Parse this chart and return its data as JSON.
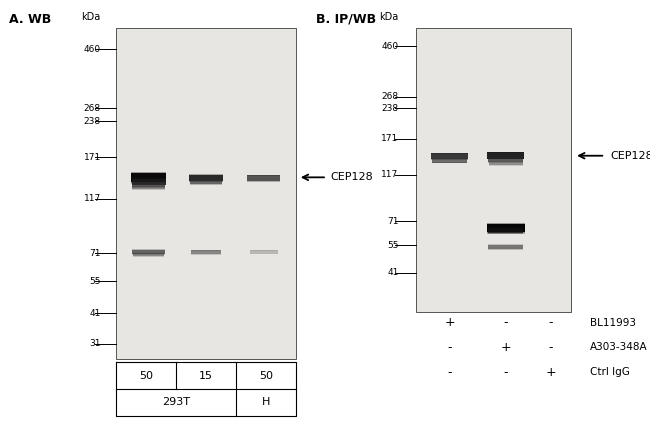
{
  "title_A": "A. WB",
  "title_B": "B. IP/WB",
  "mw_markers_A": [
    460,
    268,
    238,
    171,
    117,
    71,
    55,
    41,
    31
  ],
  "mw_markers_B": [
    460,
    268,
    238,
    171,
    117,
    71,
    55,
    41
  ],
  "label_CEP128": "CEP128",
  "label_kDa": "kDa",
  "label_IP": "IP",
  "gel_bg": "#e8e6e2",
  "fig_bg": "white",
  "table_A_row1": [
    "50",
    "15",
    "50"
  ],
  "table_A_row2_left": "293T",
  "table_A_row2_right": "H",
  "ip_row_labels": [
    "BL11993",
    "A303-348A",
    "Ctrl IgG"
  ],
  "ip_symbols": [
    [
      "+",
      "-",
      "-"
    ],
    [
      "-",
      "+",
      "-"
    ],
    [
      "-",
      "-",
      "+"
    ]
  ]
}
